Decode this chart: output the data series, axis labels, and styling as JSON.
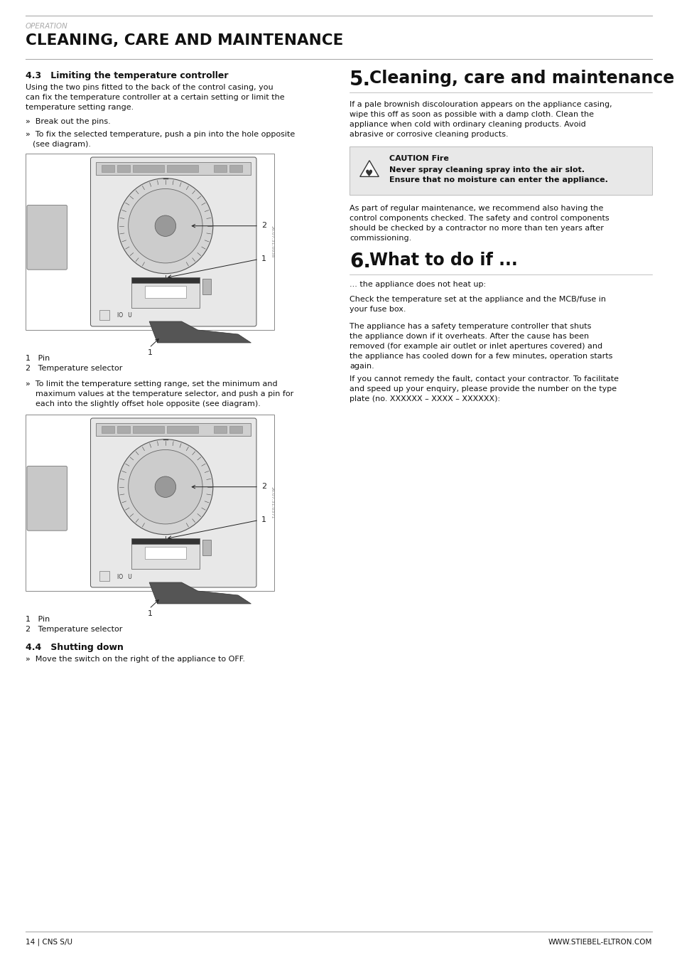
{
  "page_bg": "#ffffff",
  "rule_color": "#aaaaaa",
  "header_section": "OPERATION",
  "header_title": "CLEANING, CARE AND MAINTENANCE",
  "header_section_color": "#aaaaaa",
  "header_title_color": "#111111",
  "left_col_section43_title": "4.3   Limiting the temperature controller",
  "body43": "Using the two pins fitted to the back of the control casing, you\ncan fix the temperature controller at a certain setting or limit the\ntemperature setting range.",
  "bullet1": "»  Break out the pins.",
  "bullet2a": "»  To fix the selected temperature, push a pin into the hole opposite",
  "bullet2b": "   (see diagram).",
  "cap1_1": "1   Pin",
  "cap1_2": "2   Temperature selector",
  "bullet3a": "»  To limit the temperature setting range, set the minimum and",
  "bullet3b": "    maximum values at the temperature selector, and push a pin for",
  "bullet3c": "    each into the slightly offset hole opposite (see diagram).",
  "cap2_1": "1   Pin",
  "cap2_2": "2   Temperature selector",
  "sec44_title": "4.4   Shutting down",
  "sec44_body": "»  Move the switch on the right of the appliance to OFF.",
  "sec5_num": "5.",
  "sec5_title": "Cleaning, care and maintenance",
  "sec5_body1a": "If a pale brownish discolouration appears on the appliance casing,",
  "sec5_body1b": "wipe this off as soon as possible with a damp cloth. Clean the",
  "sec5_body1c": "appliance when cold with ordinary cleaning products. Avoid",
  "sec5_body1d": "abrasive or corrosive cleaning products.",
  "caution_title": "CAUTION Fire",
  "caution_line1": "Never spray cleaning spray into the air slot.",
  "caution_line2": "Ensure that no moisture can enter the appliance.",
  "sec5_body2a": "As part of regular maintenance, we recommend also having the",
  "sec5_body2b": "control components checked. The safety and control components",
  "sec5_body2c": "should be checked by a contractor no more than ten years after",
  "sec5_body2d": "commissioning.",
  "sec6_num": "6.",
  "sec6_title": "What to do if ...",
  "sec6_sub": "... the appliance does not heat up:",
  "sec6_b1a": "Check the temperature set at the appliance and the MCB/fuse in",
  "sec6_b1b": "your fuse box.",
  "sec6_b2a": "The appliance has a safety temperature controller that shuts",
  "sec6_b2b": "the appliance down if it overheats. After the cause has been",
  "sec6_b2c": "removed (for example air outlet or inlet apertures covered) and",
  "sec6_b2d": "the appliance has cooled down for a few minutes, operation starts",
  "sec6_b2e": "again.",
  "sec6_b3a": "If you cannot remedy the fault, contact your contractor. To facilitate",
  "sec6_b3b": "and speed up your enquiry, please provide the number on the type",
  "sec6_b3c": "plate (no. XXXXXX – XXXX – XXXXXX):",
  "footer_left": "14 | CNS S/U",
  "footer_right": "WWW.STIEBEL-ELTRON.COM",
  "text_color": "#111111",
  "gray_text": "#888888",
  "diag_code1": "26.07.31.0038",
  "diag_code2": "26.07.31.0371"
}
